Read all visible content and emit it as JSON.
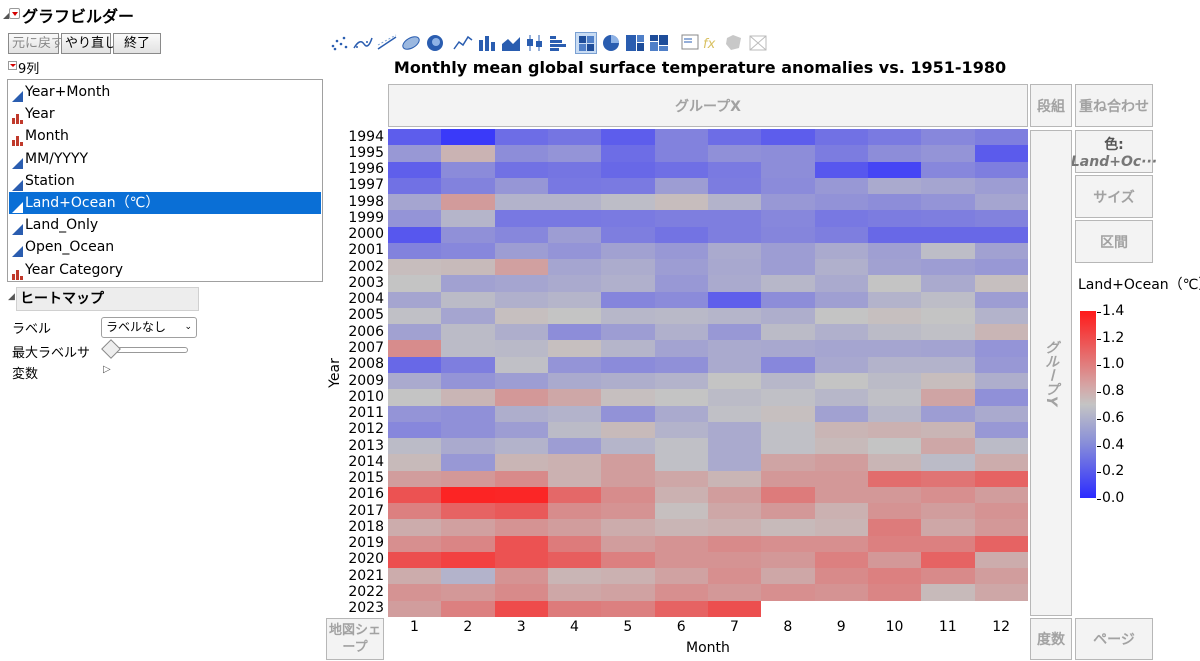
{
  "app": {
    "title": "グラフビルダー"
  },
  "toolbar": {
    "undo": "元に戻す",
    "redo": "やり直し",
    "done": "終了"
  },
  "columns": {
    "header": "9列",
    "items": [
      {
        "label": "Year+Month",
        "type": "continuous"
      },
      {
        "label": "Year",
        "type": "nominal"
      },
      {
        "label": "Month",
        "type": "nominal"
      },
      {
        "label": "MM/YYYY",
        "type": "continuous"
      },
      {
        "label": "Station",
        "type": "continuous"
      },
      {
        "label": "Land+Ocean（℃）",
        "type": "continuous",
        "selected": true
      },
      {
        "label": "Land_Only",
        "type": "continuous"
      },
      {
        "label": "Open_Ocean",
        "type": "continuous"
      },
      {
        "label": "Year Category",
        "type": "nominal"
      }
    ]
  },
  "heatmap_panel": {
    "header": "ヒートマップ",
    "label_caption": "ラベル",
    "label_value": "ラベルなし",
    "max_label_caption": "最大ラベルサ",
    "variables_caption": "変数"
  },
  "graph": {
    "zones": {
      "group_x": "グループX",
      "wrap": "段組",
      "overlay": "重ね合わせ",
      "color_line1": "色:",
      "color_line2": "Land+Oc···",
      "size": "サイズ",
      "interval": "区間",
      "group_y": "グループY",
      "map_shape": "地図シェープ",
      "freq": "度数",
      "page": "ページ"
    }
  },
  "chart_data": {
    "type": "heatmap",
    "title": "Monthly mean global surface temperature anomalies vs. 1951-1980",
    "xlabel": "Month",
    "ylabel": "Year",
    "x": [
      "1",
      "2",
      "3",
      "4",
      "5",
      "6",
      "7",
      "8",
      "9",
      "10",
      "11",
      "12"
    ],
    "y": [
      "1994",
      "1995",
      "1996",
      "1997",
      "1998",
      "1999",
      "2000",
      "2001",
      "2002",
      "2003",
      "2004",
      "2005",
      "2006",
      "2007",
      "2008",
      "2009",
      "2010",
      "2011",
      "2012",
      "2013",
      "2014",
      "2015",
      "2016",
      "2017",
      "2018",
      "2019",
      "2020",
      "2021",
      "2022",
      "2023"
    ],
    "color_scale": {
      "label": "Land+Ocean（℃）",
      "min": 0.0,
      "max": 1.4,
      "ticks": [
        "1.4",
        "1.2",
        "1.0",
        "0.8",
        "0.6",
        "0.4",
        "0.2",
        "0.0"
      ],
      "low_color": "#2b2bff",
      "mid_color": "#c4c4c4",
      "high_color": "#ff1a1a"
    },
    "values": [
      [
        0.23,
        0.07,
        0.3,
        0.34,
        0.23,
        0.4,
        0.3,
        0.23,
        0.32,
        0.36,
        0.42,
        0.38
      ],
      [
        0.5,
        0.77,
        0.45,
        0.48,
        0.3,
        0.4,
        0.46,
        0.45,
        0.37,
        0.45,
        0.48,
        0.22
      ],
      [
        0.24,
        0.44,
        0.32,
        0.34,
        0.28,
        0.31,
        0.36,
        0.45,
        0.2,
        0.12,
        0.42,
        0.38
      ],
      [
        0.32,
        0.4,
        0.49,
        0.35,
        0.36,
        0.52,
        0.37,
        0.44,
        0.5,
        0.58,
        0.56,
        0.52
      ],
      [
        0.56,
        0.87,
        0.62,
        0.62,
        0.67,
        0.73,
        0.62,
        0.5,
        0.47,
        0.45,
        0.48,
        0.56
      ],
      [
        0.48,
        0.63,
        0.35,
        0.35,
        0.36,
        0.38,
        0.38,
        0.42,
        0.35,
        0.37,
        0.38,
        0.4
      ],
      [
        0.2,
        0.46,
        0.42,
        0.52,
        0.38,
        0.33,
        0.38,
        0.41,
        0.38,
        0.28,
        0.28,
        0.28
      ],
      [
        0.4,
        0.42,
        0.52,
        0.48,
        0.54,
        0.5,
        0.58,
        0.52,
        0.58,
        0.53,
        0.67,
        0.54
      ],
      [
        0.73,
        0.74,
        0.85,
        0.56,
        0.59,
        0.52,
        0.57,
        0.52,
        0.61,
        0.54,
        0.52,
        0.5
      ],
      [
        0.7,
        0.54,
        0.56,
        0.58,
        0.61,
        0.5,
        0.58,
        0.64,
        0.58,
        0.7,
        0.58,
        0.72
      ],
      [
        0.56,
        0.66,
        0.61,
        0.63,
        0.41,
        0.44,
        0.24,
        0.45,
        0.53,
        0.62,
        0.67,
        0.52
      ],
      [
        0.68,
        0.56,
        0.72,
        0.7,
        0.64,
        0.65,
        0.63,
        0.6,
        0.7,
        0.72,
        0.7,
        0.62
      ],
      [
        0.54,
        0.66,
        0.6,
        0.45,
        0.52,
        0.61,
        0.5,
        0.66,
        0.61,
        0.66,
        0.68,
        0.76
      ],
      [
        0.93,
        0.66,
        0.65,
        0.72,
        0.63,
        0.55,
        0.58,
        0.57,
        0.56,
        0.56,
        0.55,
        0.48
      ],
      [
        0.28,
        0.38,
        0.68,
        0.48,
        0.44,
        0.46,
        0.58,
        0.42,
        0.57,
        0.62,
        0.62,
        0.5
      ],
      [
        0.58,
        0.48,
        0.52,
        0.58,
        0.6,
        0.62,
        0.7,
        0.64,
        0.7,
        0.66,
        0.73,
        0.6
      ],
      [
        0.7,
        0.76,
        0.88,
        0.82,
        0.72,
        0.7,
        0.66,
        0.68,
        0.64,
        0.68,
        0.83,
        0.46
      ],
      [
        0.48,
        0.46,
        0.6,
        0.62,
        0.47,
        0.58,
        0.68,
        0.72,
        0.54,
        0.64,
        0.52,
        0.58
      ],
      [
        0.42,
        0.46,
        0.52,
        0.66,
        0.74,
        0.62,
        0.58,
        0.68,
        0.76,
        0.78,
        0.76,
        0.5
      ],
      [
        0.66,
        0.58,
        0.62,
        0.52,
        0.63,
        0.68,
        0.58,
        0.68,
        0.74,
        0.7,
        0.82,
        0.66
      ],
      [
        0.74,
        0.5,
        0.76,
        0.78,
        0.86,
        0.68,
        0.58,
        0.83,
        0.86,
        0.76,
        0.66,
        0.8
      ],
      [
        0.86,
        0.88,
        0.94,
        0.78,
        0.86,
        0.82,
        0.76,
        0.88,
        0.88,
        1.06,
        1.03,
        1.1
      ],
      [
        1.17,
        1.36,
        1.35,
        1.08,
        0.93,
        0.78,
        0.86,
        1.0,
        0.88,
        0.88,
        0.92,
        0.86
      ],
      [
        0.98,
        1.1,
        1.14,
        0.93,
        0.9,
        0.72,
        0.82,
        0.88,
        0.78,
        0.9,
        0.86,
        0.9
      ],
      [
        0.8,
        0.85,
        0.9,
        0.86,
        0.8,
        0.76,
        0.78,
        0.74,
        0.76,
        1.0,
        0.82,
        0.88
      ],
      [
        0.92,
        0.96,
        1.17,
        1.0,
        0.86,
        0.9,
        0.94,
        0.92,
        0.92,
        0.98,
        0.98,
        1.1
      ],
      [
        1.18,
        1.24,
        1.17,
        1.12,
        0.98,
        0.9,
        0.9,
        0.88,
        0.98,
        0.88,
        1.1,
        0.8
      ],
      [
        0.8,
        0.62,
        0.9,
        0.76,
        0.78,
        0.84,
        0.92,
        0.82,
        0.94,
        0.98,
        0.94,
        0.86
      ],
      [
        0.9,
        0.88,
        0.94,
        0.82,
        0.84,
        0.92,
        0.88,
        0.92,
        0.9,
        0.96,
        0.74,
        0.82
      ],
      [
        0.86,
        0.98,
        1.2,
        1.0,
        0.98,
        1.1,
        1.18,
        null,
        null,
        null,
        null,
        null
      ]
    ]
  }
}
